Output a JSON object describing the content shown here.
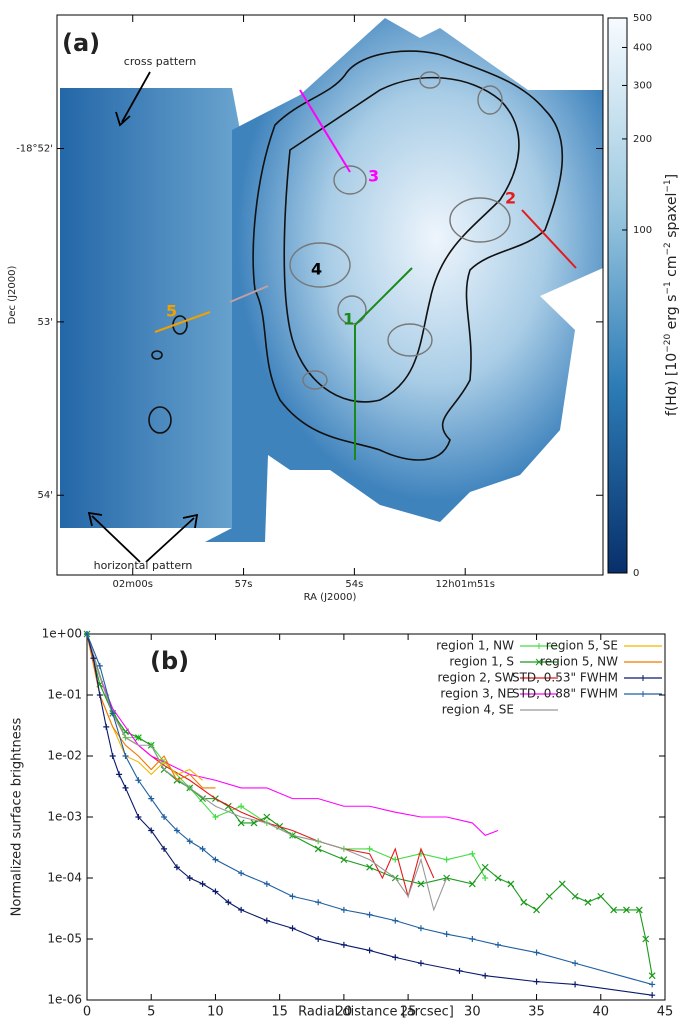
{
  "chart_data": [
    {
      "type": "image",
      "panel_label": "(a)",
      "xlabel": "RA (J2000)",
      "ylabel": "Dec (J2000)",
      "xlim": [
        62.05,
        47.27
      ],
      "xticks": [
        {
          "value": 60,
          "label": "02m00s"
        },
        {
          "value": 57,
          "label": "57s"
        },
        {
          "value": 54,
          "label": "54s"
        },
        {
          "value": 51,
          "label": "12h01m51s"
        }
      ],
      "ylim": [
        54.46,
        51.23
      ],
      "yticks": [
        {
          "value": 52,
          "label": "-18°52'"
        },
        {
          "value": 53,
          "label": "53'"
        },
        {
          "value": 54,
          "label": "54'"
        }
      ],
      "colorbar": {
        "label": [
          {
            "text": "f(Hα) [10"
          },
          {
            "text": "−20",
            "sup": true
          },
          {
            "text": " erg s"
          },
          {
            "text": "−1",
            "sup": true
          },
          {
            "text": " cm"
          },
          {
            "text": "−2",
            "sup": true
          },
          {
            "text": " spaxel"
          },
          {
            "text": "−1",
            "sup": true
          },
          {
            "text": "]"
          }
        ],
        "scale": "asinh",
        "lim": [
          0,
          500
        ],
        "ticks": [
          0,
          100,
          200,
          300,
          400,
          500
        ],
        "colors": [
          "#08306b",
          "#2c7bb6",
          "#9ecae1",
          "#f7fbff"
        ]
      },
      "annotations": [
        "cross pattern",
        "horizontal pattern"
      ],
      "regions": [
        {
          "label": "1",
          "color": "#1a8a1a"
        },
        {
          "label": "2",
          "color": "#e41a1c"
        },
        {
          "label": "3",
          "color": "#ff00ff"
        },
        {
          "label": "4",
          "color": "#000000"
        },
        {
          "label": "5",
          "color": "#f0a000"
        }
      ]
    },
    {
      "type": "line",
      "panel_label": "(b)",
      "xlabel": "Radial distance [arcsec]",
      "ylabel": "Normalized surface brightness",
      "xlim": [
        0,
        45
      ],
      "xticks": [
        0,
        5,
        10,
        15,
        20,
        25,
        30,
        35,
        40,
        45
      ],
      "ylim": [
        1e-06,
        1
      ],
      "log_y": true,
      "yticks": [
        {
          "value": 1e-06,
          "label": "1e-06"
        },
        {
          "value": 1e-05,
          "label": "1e-05"
        },
        {
          "value": 0.0001,
          "label": "1e-04"
        },
        {
          "value": 0.001,
          "label": "1e-03"
        },
        {
          "value": 0.01,
          "label": "1e-02"
        },
        {
          "value": 0.1,
          "label": "1e-01"
        },
        {
          "value": 1,
          "label": "1e+00"
        }
      ],
      "series": [
        {
          "name": "region 1, NW",
          "color": "#44dd44",
          "marker": "plus",
          "x": [
            0,
            1.5,
            3,
            4,
            5,
            6,
            8,
            10,
            12,
            14,
            16,
            18,
            20,
            22,
            24,
            26,
            28,
            30,
            31
          ],
          "values": [
            1,
            0.1,
            0.02,
            0.02,
            0.015,
            0.008,
            0.003,
            0.001,
            0.0015,
            0.0008,
            0.0005,
            0.0004,
            0.0003,
            0.0003,
            0.0002,
            0.00025,
            0.0002,
            0.00025,
            0.0001
          ]
        },
        {
          "name": "region 1, S",
          "color": "#1a9a1a",
          "marker": "cross",
          "x": [
            0,
            1,
            2,
            3,
            4,
            5,
            6,
            7,
            8,
            9,
            10,
            11,
            12,
            13,
            14,
            15,
            16,
            18,
            20,
            22,
            24,
            26,
            28,
            30,
            31,
            32,
            33,
            34,
            35,
            36,
            37,
            38,
            39,
            40,
            41,
            42,
            43,
            43.5,
            44
          ],
          "values": [
            1,
            0.15,
            0.05,
            0.025,
            0.02,
            0.015,
            0.006,
            0.004,
            0.003,
            0.002,
            0.002,
            0.0015,
            0.0008,
            0.0008,
            0.001,
            0.0007,
            0.0005,
            0.0003,
            0.0002,
            0.00015,
            0.0001,
            8e-05,
            0.0001,
            8e-05,
            0.00015,
            0.0001,
            8e-05,
            4e-05,
            3e-05,
            5e-05,
            8e-05,
            5e-05,
            4e-05,
            5e-05,
            3e-05,
            3e-05,
            3e-05,
            1e-05,
            2.5e-06
          ]
        },
        {
          "name": "region 2, SW",
          "color": "#e41a1c",
          "marker": "none",
          "x": [
            0,
            1,
            2,
            3,
            4,
            5,
            6,
            8,
            10,
            12,
            14,
            16,
            18,
            20,
            22,
            23,
            24,
            25,
            26,
            27
          ],
          "values": [
            1,
            0.2,
            0.05,
            0.02,
            0.015,
            0.01,
            0.007,
            0.004,
            0.002,
            0.0012,
            0.0008,
            0.0006,
            0.0004,
            0.0003,
            0.00025,
            0.0001,
            0.0003,
            5e-05,
            0.0003,
            0.0001
          ]
        },
        {
          "name": "region 3, NE",
          "color": "#ff00ff",
          "marker": "none",
          "x": [
            0,
            1,
            2,
            3,
            4,
            5,
            6,
            8,
            10,
            12,
            14,
            16,
            18,
            20,
            22,
            24,
            26,
            28,
            30,
            31,
            32
          ],
          "values": [
            1,
            0.2,
            0.06,
            0.03,
            0.015,
            0.01,
            0.008,
            0.005,
            0.004,
            0.003,
            0.003,
            0.002,
            0.002,
            0.0015,
            0.0015,
            0.0012,
            0.001,
            0.001,
            0.0008,
            0.0005,
            0.0006
          ]
        },
        {
          "name": "region 4, SE",
          "color": "#999999",
          "marker": "none",
          "x": [
            0,
            1,
            2,
            3,
            4,
            5,
            6,
            8,
            10,
            12,
            14,
            16,
            18,
            20,
            22,
            24,
            25,
            26,
            27,
            28
          ],
          "values": [
            1,
            0.2,
            0.05,
            0.02,
            0.015,
            0.015,
            0.006,
            0.003,
            0.0015,
            0.001,
            0.0008,
            0.0005,
            0.0004,
            0.0003,
            0.0002,
            0.0001,
            5e-05,
            0.0002,
            3e-05,
            0.0001
          ]
        },
        {
          "name": "region 5, SE",
          "color": "#f2b600",
          "marker": "none",
          "x": [
            0,
            1,
            2,
            3,
            4,
            5,
            6,
            7,
            8,
            9
          ],
          "values": [
            1,
            0.1,
            0.03,
            0.01,
            0.008,
            0.005,
            0.008,
            0.005,
            0.006,
            0.004
          ]
        },
        {
          "name": "region 5, NW",
          "color": "#f07800",
          "marker": "none",
          "x": [
            0,
            1,
            2,
            3,
            4,
            5,
            6,
            7,
            8,
            9,
            10
          ],
          "values": [
            1,
            0.1,
            0.03,
            0.015,
            0.01,
            0.006,
            0.01,
            0.004,
            0.005,
            0.003,
            0.003
          ]
        },
        {
          "name": "STD, 0.53\" FWHM",
          "color": "#0a1a6a",
          "marker": "plus",
          "x": [
            0,
            0.5,
            1,
            1.5,
            2,
            2.5,
            3,
            4,
            5,
            6,
            7,
            8,
            9,
            10,
            11,
            12,
            14,
            16,
            18,
            20,
            22,
            24,
            26,
            29,
            31,
            35,
            38,
            44
          ],
          "values": [
            1,
            0.4,
            0.1,
            0.03,
            0.01,
            0.005,
            0.003,
            0.001,
            0.0006,
            0.0003,
            0.00015,
            0.0001,
            8e-05,
            6e-05,
            4e-05,
            3e-05,
            2e-05,
            1.5e-05,
            1e-05,
            8e-06,
            6.5e-06,
            5e-06,
            4e-06,
            3e-06,
            2.5e-06,
            2e-06,
            1.8e-06,
            1.2e-06
          ]
        },
        {
          "name": "STD, 0.88\" FWHM",
          "color": "#1f5fa0",
          "marker": "plus",
          "x": [
            0,
            1,
            2,
            3,
            4,
            5,
            6,
            7,
            8,
            9,
            10,
            12,
            14,
            16,
            18,
            20,
            22,
            24,
            26,
            28,
            30,
            32,
            35,
            38,
            44
          ],
          "values": [
            1,
            0.3,
            0.05,
            0.01,
            0.004,
            0.002,
            0.001,
            0.0006,
            0.0004,
            0.0003,
            0.0002,
            0.00012,
            8e-05,
            5e-05,
            4e-05,
            3e-05,
            2.5e-05,
            2e-05,
            1.5e-05,
            1.2e-05,
            1e-05,
            8e-06,
            6e-06,
            4e-06,
            1.8e-06
          ]
        }
      ]
    }
  ]
}
